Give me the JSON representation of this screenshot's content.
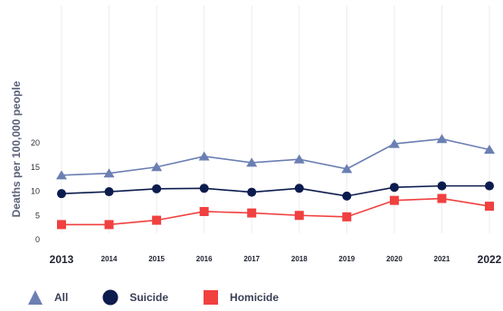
{
  "chart_data": {
    "type": "line",
    "title": "",
    "xlabel": "",
    "ylabel": "Deaths per 100,000 people",
    "x": [
      "2013",
      "2014",
      "2015",
      "2016",
      "2017",
      "2018",
      "2019",
      "2020",
      "2021",
      "2022"
    ],
    "ylim": [
      0,
      23
    ],
    "yticks": [
      "0",
      "5",
      "10",
      "15",
      "20"
    ],
    "grid": "vertical",
    "legend_position": "bottom-left",
    "series": [
      {
        "name": "All",
        "marker": "triangle",
        "color": "#6b7fb3",
        "values": [
          13.3,
          13.7,
          15.0,
          17.2,
          15.9,
          16.6,
          14.6,
          19.8,
          20.8,
          18.6
        ]
      },
      {
        "name": "Suicide",
        "marker": "circle",
        "color": "#0c1c4e",
        "values": [
          9.5,
          9.9,
          10.5,
          10.6,
          9.8,
          10.6,
          9.0,
          10.8,
          11.1,
          11.1
        ]
      },
      {
        "name": "Homicide",
        "marker": "square",
        "color": "#f0403f",
        "values": [
          3.1,
          3.1,
          4.0,
          5.8,
          5.5,
          5.0,
          4.7,
          8.1,
          8.5,
          6.9
        ]
      }
    ]
  }
}
